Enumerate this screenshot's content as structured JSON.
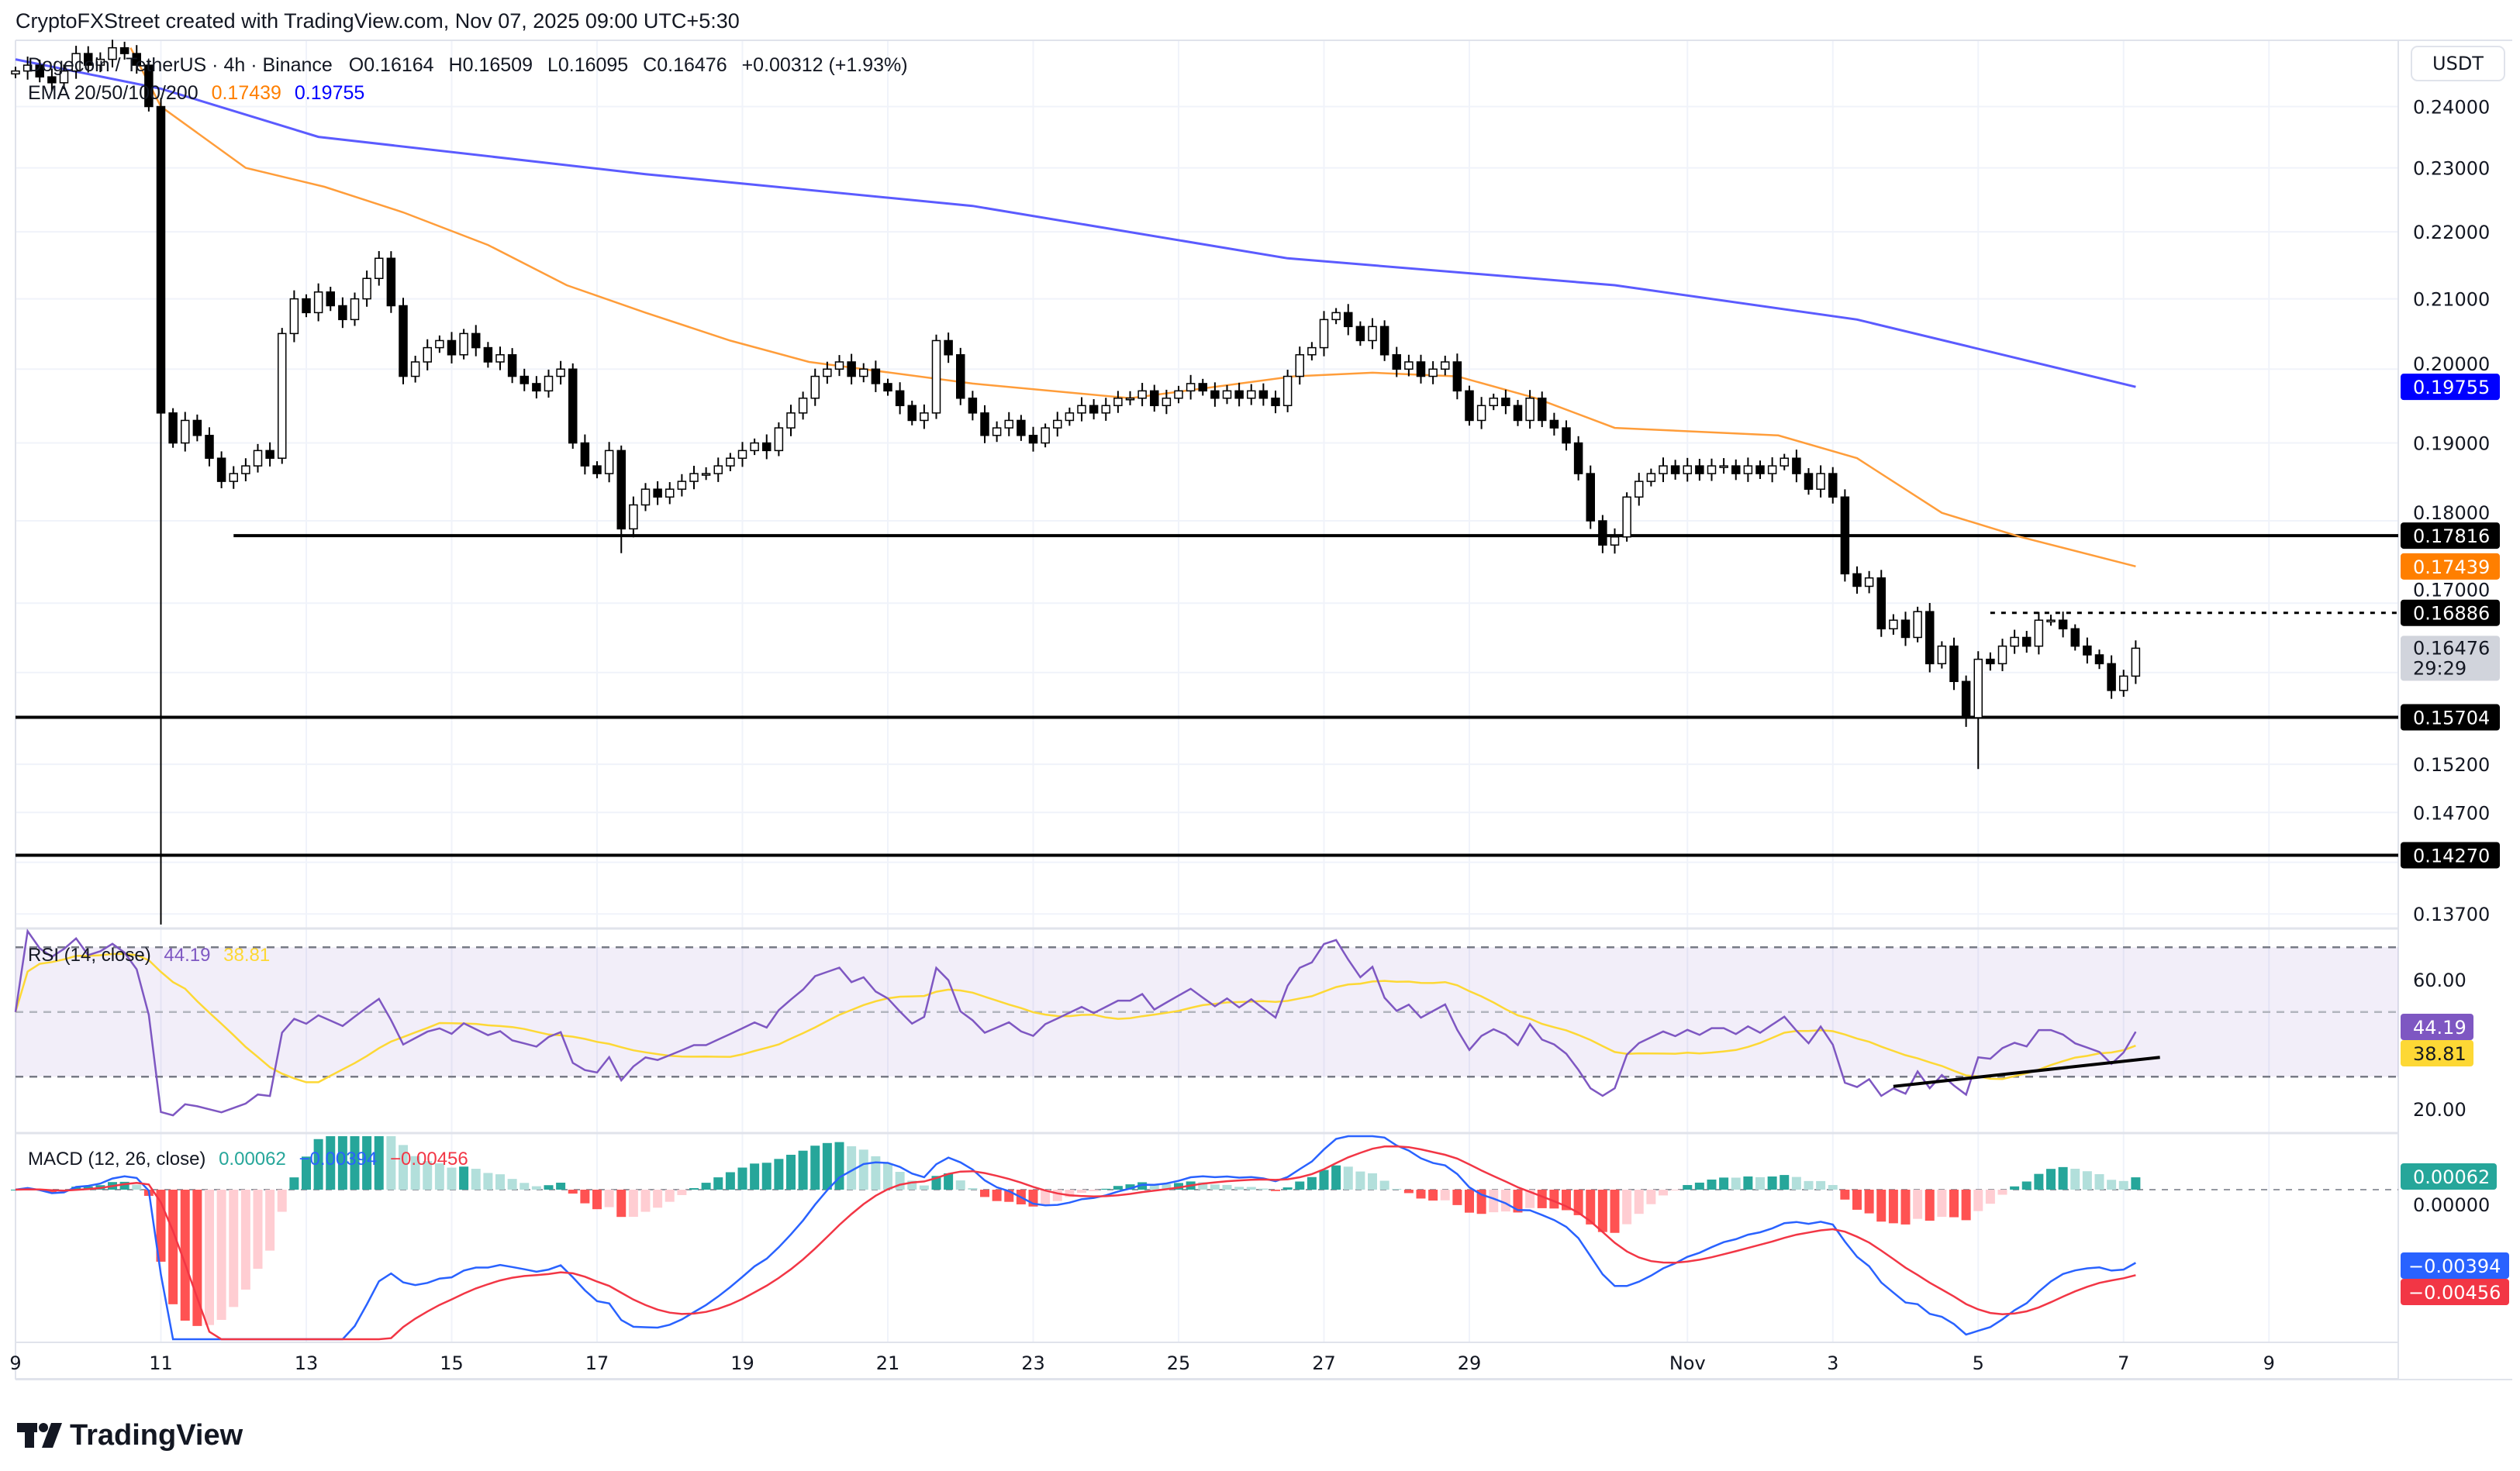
{
  "header": {
    "credit": "CryptoFXStreet created with TradingView.com, Nov 07, 2025 09:00 UTC+5:30",
    "symbol": "Dogecoin / TetherUS · 4h · Binance",
    "open": "O0.16164",
    "high": "H0.16509",
    "low": "L0.16095",
    "close": "C0.16476",
    "change": "+0.00312 (+1.93%)",
    "ema_label": "EMA 20/50/100/200",
    "ema50_value": "0.17439",
    "ema200_value": "0.19755"
  },
  "price_axis": {
    "currency": "USDT",
    "ticks": [
      "0.24000",
      "0.23000",
      "0.22000",
      "0.21000",
      "0.20000",
      "0.19000",
      "0.18000",
      "0.17000",
      "0.15200",
      "0.14700",
      "0.13700"
    ],
    "tags": [
      {
        "label": "0.19755",
        "value": 0.19755,
        "color": "#0000ff",
        "text": "#ffffff"
      },
      {
        "label": "0.17816",
        "value": 0.17816,
        "color": "#000000",
        "text": "#ffffff"
      },
      {
        "label": "0.17439",
        "value": 0.17439,
        "color": "#ff7f00",
        "text": "#ffffff"
      },
      {
        "label": "0.16886",
        "value": 0.16886,
        "color": "#000000",
        "text": "#ffffff"
      },
      {
        "label": "0.15704",
        "value": 0.15704,
        "color": "#000000",
        "text": "#ffffff"
      },
      {
        "label": "0.14270",
        "value": 0.1427,
        "color": "#000000",
        "text": "#ffffff"
      }
    ],
    "last_price": "0.16476",
    "countdown": "29:29"
  },
  "time_axis": [
    "9",
    "11",
    "13",
    "15",
    "17",
    "19",
    "21",
    "23",
    "25",
    "27",
    "29",
    "Nov",
    "3",
    "5",
    "7",
    "9"
  ],
  "rsi": {
    "label": "RSI (14, close)",
    "value": "44.19",
    "ma_value": "38.81",
    "ticks": [
      "60.00",
      "20.00"
    ],
    "color": "#7e57c2",
    "ma_color": "#fdd835"
  },
  "macd": {
    "label": "MACD (12, 26, close)",
    "hist_value": "0.00062",
    "macd_value": "−0.00394",
    "signal_value": "−0.00456",
    "zero_tick": "0.00000",
    "macd_color": "#2962ff",
    "signal_color": "#f23645",
    "hist_up": "#26a69a",
    "hist_down": "#ff5252"
  },
  "logo": {
    "text": "TradingView"
  },
  "chart_data": {
    "type": "candlestick",
    "scale": "log",
    "ylim": [
      0.135,
      0.25
    ],
    "interval": "4h",
    "first_candle": "Oct 9 00:00",
    "closes": [
      0.246,
      0.247,
      0.245,
      0.244,
      0.246,
      0.249,
      0.247,
      0.248,
      0.25,
      0.249,
      0.247,
      0.24,
      0.194,
      0.19,
      0.193,
      0.191,
      0.188,
      0.185,
      0.186,
      0.187,
      0.189,
      0.188,
      0.205,
      0.21,
      0.208,
      0.211,
      0.209,
      0.207,
      0.21,
      0.213,
      0.216,
      0.209,
      0.199,
      0.201,
      0.203,
      0.204,
      0.202,
      0.205,
      0.203,
      0.201,
      0.202,
      0.199,
      0.198,
      0.197,
      0.199,
      0.2,
      0.19,
      0.187,
      0.186,
      0.189,
      0.179,
      0.182,
      0.184,
      0.183,
      0.184,
      0.185,
      0.186,
      0.186,
      0.187,
      0.188,
      0.189,
      0.19,
      0.189,
      0.192,
      0.194,
      0.196,
      0.199,
      0.2,
      0.201,
      0.199,
      0.2,
      0.198,
      0.197,
      0.195,
      0.193,
      0.194,
      0.204,
      0.202,
      0.196,
      0.194,
      0.191,
      0.192,
      0.193,
      0.191,
      0.19,
      0.192,
      0.193,
      0.194,
      0.195,
      0.194,
      0.195,
      0.196,
      0.196,
      0.197,
      0.195,
      0.196,
      0.197,
      0.198,
      0.197,
      0.196,
      0.197,
      0.196,
      0.197,
      0.196,
      0.195,
      0.199,
      0.202,
      0.203,
      0.207,
      0.208,
      0.206,
      0.204,
      0.206,
      0.202,
      0.2,
      0.201,
      0.199,
      0.2,
      0.201,
      0.197,
      0.193,
      0.195,
      0.196,
      0.195,
      0.193,
      0.196,
      0.193,
      0.192,
      0.19,
      0.186,
      0.18,
      0.177,
      0.178,
      0.183,
      0.185,
      0.186,
      0.187,
      0.186,
      0.187,
      0.186,
      0.187,
      0.187,
      0.186,
      0.187,
      0.186,
      0.187,
      0.188,
      0.186,
      0.184,
      0.186,
      0.183,
      0.1735,
      0.172,
      0.173,
      0.167,
      0.168,
      0.166,
      0.169,
      0.163,
      0.165,
      0.161,
      0.157,
      0.1635,
      0.163,
      0.165,
      0.166,
      0.165,
      0.168,
      0.168,
      0.167,
      0.165,
      0.164,
      0.163,
      0.16,
      0.1616,
      0.16476
    ],
    "wick_lows": {
      "12": 0.136,
      "161": 0.156,
      "162": 0.1515,
      "50": 0.176,
      "131": 0.176
    },
    "ema50": [
      [
        "Oct 10 14:00",
        0.25
      ],
      [
        "Oct 11 00:00",
        0.24
      ],
      [
        "Oct 12 04:00",
        0.23
      ],
      [
        "Oct 13 06:00",
        0.227
      ],
      [
        "Oct 14 08:00",
        0.223
      ],
      [
        "Oct 15 12:00",
        0.218
      ],
      [
        "Oct 16 14:00",
        0.212
      ],
      [
        "Oct 17 16:00",
        0.208
      ],
      [
        "Oct 18 20:00",
        0.204
      ],
      [
        "Oct 19 22:00",
        0.201
      ],
      [
        "Oct 22 04:00",
        0.198
      ],
      [
        "Oct 24 08:00",
        0.196
      ],
      [
        "Oct 26 14:00",
        0.199
      ],
      [
        "Oct 27 16:00",
        0.1995
      ],
      [
        "Oct 28 20:00",
        0.199
      ],
      [
        "Oct 29 22:00",
        0.196
      ],
      [
        "Oct 31 00:00",
        0.192
      ],
      [
        "Nov 2 06:00",
        0.191
      ],
      [
        "Nov 3 08:00",
        0.188
      ],
      [
        "Nov 4 12:00",
        0.181
      ],
      [
        "Nov 5 14:00",
        0.178
      ],
      [
        "Nov 7 04:00",
        0.17439
      ]
    ],
    "ema200": [
      [
        "Oct 9 00:00",
        0.248
      ],
      [
        "Oct 11 00:00",
        0.243
      ],
      [
        "Oct 13 04:00",
        0.235
      ],
      [
        "Oct 17 16:00",
        0.229
      ],
      [
        "Oct 22 04:00",
        0.224
      ],
      [
        "Oct 26 12:00",
        0.216
      ],
      [
        "Oct 31 00:00",
        0.212
      ],
      [
        "Nov 3 08:00",
        0.207
      ],
      [
        "Nov 7 04:00",
        0.19755
      ]
    ],
    "levels": [
      {
        "value": 0.17816,
        "style": "solid",
        "from": "Oct 12 00:00"
      },
      {
        "value": 0.16886,
        "style": "dotted",
        "from": "Nov 5 04:00"
      },
      {
        "value": 0.15704,
        "style": "solid",
        "from": "Oct 9 00:00"
      },
      {
        "value": 0.1427,
        "style": "solid",
        "from": "Oct 9 00:00"
      }
    ],
    "rsi_levels": [
      70,
      50,
      30
    ],
    "rsi_trendline": [
      [
        "Nov 3 20:00",
        27
      ],
      [
        "Nov 7 12:00",
        36
      ]
    ]
  }
}
